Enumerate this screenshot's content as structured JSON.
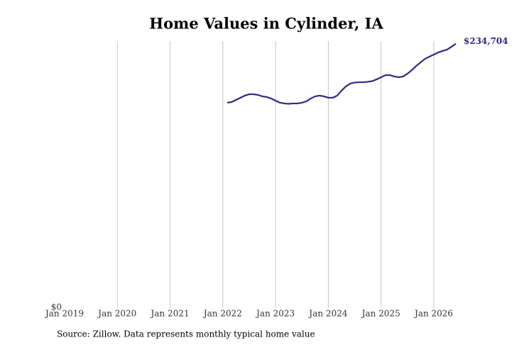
{
  "chart_data": {
    "type": "line",
    "title": "Home Values in Cylinder, IA",
    "source": "Source: Zillow. Data represents monthly typical home value",
    "x": [
      "Feb 2022",
      "Mar 2022",
      "Apr 2022",
      "May 2022",
      "Jun 2022",
      "Jul 2022",
      "Aug 2022",
      "Sep 2022",
      "Oct 2022",
      "Nov 2022",
      "Dec 2022",
      "Jan 2023",
      "Feb 2023",
      "Mar 2023",
      "Apr 2023",
      "May 2023",
      "Jun 2023",
      "Jul 2023",
      "Aug 2023",
      "Sep 2023",
      "Oct 2023",
      "Nov 2023",
      "Dec 2023",
      "Jan 2024",
      "Feb 2024",
      "Mar 2024",
      "Apr 2024",
      "May 2024",
      "Jun 2024",
      "Jul 2024",
      "Aug 2024",
      "Sep 2024",
      "Oct 2024",
      "Nov 2024",
      "Dec 2024",
      "Jan 2025",
      "Feb 2025",
      "Mar 2025",
      "Apr 2025",
      "May 2025",
      "Jun 2025",
      "Jul 2025",
      "Aug 2025",
      "Sep 2025",
      "Oct 2025",
      "Nov 2025",
      "Dec 2025",
      "Jan 2026",
      "Feb 2026",
      "Mar 2026",
      "Apr 2026",
      "May 2026",
      "Jun 2026"
    ],
    "series": [
      {
        "name": "Cylinder, IA",
        "color": "#2e2a7f",
        "values": [
          182200,
          182800,
          184700,
          186600,
          188500,
          189700,
          189700,
          189100,
          187800,
          187200,
          185900,
          184000,
          182200,
          181500,
          181200,
          181500,
          181500,
          182200,
          183400,
          185900,
          187800,
          188500,
          187800,
          186600,
          186600,
          188500,
          192900,
          196700,
          199200,
          200100,
          200400,
          200400,
          200800,
          201400,
          203000,
          204800,
          206700,
          206700,
          205500,
          204800,
          205500,
          208000,
          211200,
          214900,
          218100,
          221200,
          223100,
          225000,
          226900,
          228200,
          229400,
          231900,
          234704
        ],
        "value_labels": [
          null,
          null,
          null,
          null,
          null,
          null,
          null,
          null,
          null,
          null,
          null,
          null,
          null,
          null,
          null,
          null,
          null,
          null,
          null,
          null,
          null,
          null,
          null,
          null,
          null,
          null,
          null,
          null,
          null,
          null,
          null,
          null,
          null,
          null,
          null,
          null,
          null,
          null,
          null,
          null,
          null,
          null,
          null,
          null,
          null,
          null,
          null,
          null,
          null,
          null,
          null,
          null,
          "$234,704"
        ]
      }
    ],
    "xlim": [
      "Jan 2019",
      "Jun 2026"
    ],
    "xticks": [
      "Jan 2019",
      "Jan 2020",
      "Jan 2021",
      "Jan 2022",
      "Jan 2023",
      "Jan 2024",
      "Jan 2025",
      "Jan 2026"
    ],
    "ylim": [
      0,
      237000
    ],
    "yticks": [
      {
        "value": 0,
        "label": "$0"
      }
    ],
    "grid": true
  }
}
